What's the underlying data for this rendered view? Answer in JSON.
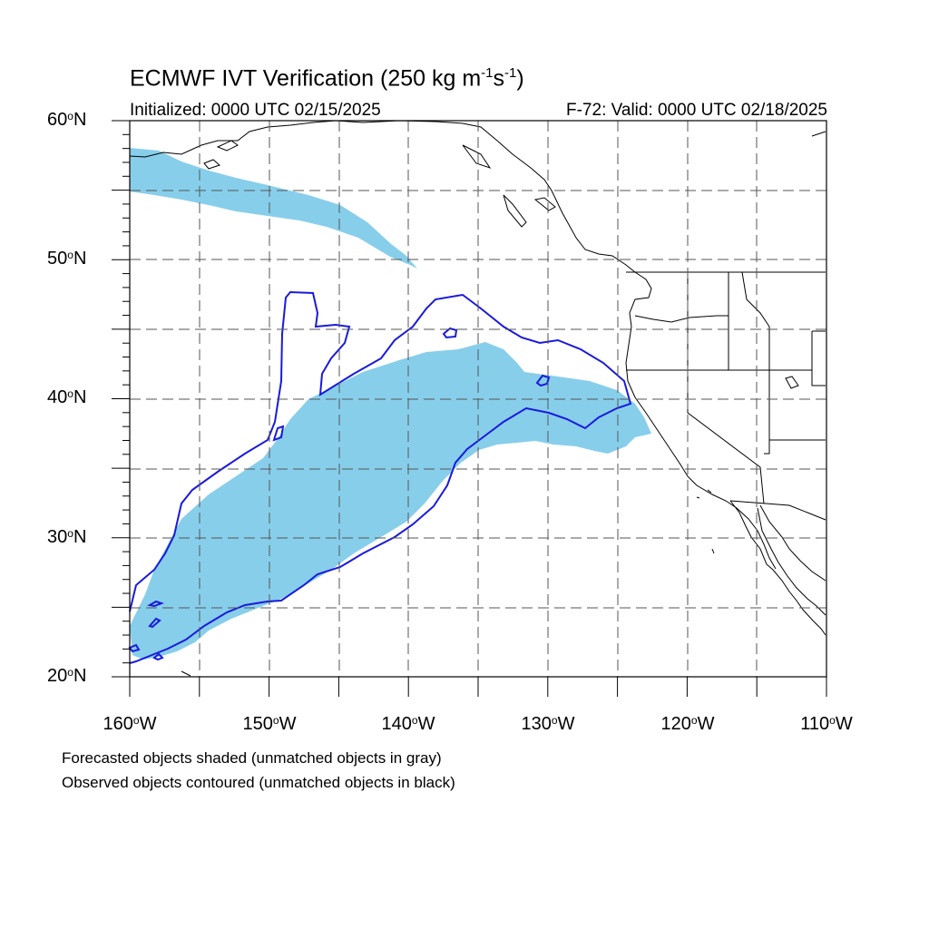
{
  "title": {
    "main": "ECMWF IVT Verification (250 kg m",
    "exp1": "-1",
    "mid": "s",
    "exp2": "-1",
    "end": ")"
  },
  "subtitle": {
    "initialized": "Initialized: 0000 UTC 02/15/2025",
    "valid": "F-72: Valid: 0000 UTC 02/18/2025"
  },
  "lat_labels": [
    "60",
    "50",
    "40",
    "30",
    "20"
  ],
  "lat_suffix": "N",
  "lon_labels": [
    "160",
    "150",
    "140",
    "130",
    "120",
    "110"
  ],
  "lon_suffix": "W",
  "caption": {
    "line1": "Forecasted objects shaded (unmatched objects in gray)",
    "line2": "Observed objects contoured (unmatched objects in black)"
  },
  "colors": {
    "forecast_fill": "#87ceeb",
    "observed_contour": "#1a1adc",
    "grid": "#555555",
    "coastline": "#000000"
  },
  "map": {
    "projection": "cylindrical equidistant",
    "lon_range": [
      -160,
      -110
    ],
    "lat_range": [
      20,
      60
    ],
    "gridlines": "dashed, every 5 degrees"
  }
}
